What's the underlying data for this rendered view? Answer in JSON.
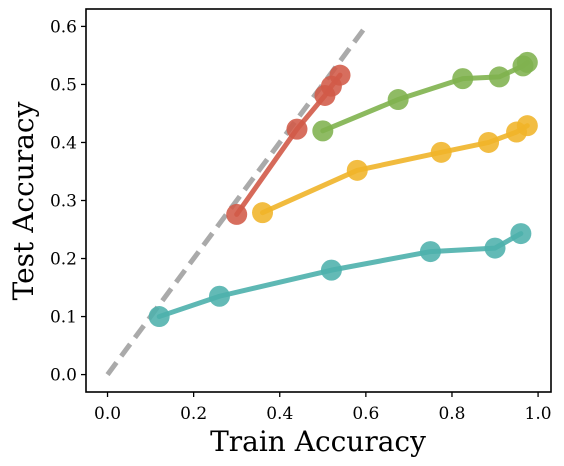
{
  "chart_data": {
    "type": "scatter",
    "xlabel": "Train Accuracy",
    "ylabel": "Test Accuracy",
    "xlim": [
      -0.05,
      1.03
    ],
    "ylim": [
      -0.03,
      0.63
    ],
    "xticks": [
      "0.0",
      "0.2",
      "0.4",
      "0.6",
      "0.8",
      "1.0"
    ],
    "yticks": [
      "0.0",
      "0.1",
      "0.2",
      "0.3",
      "0.4",
      "0.5",
      "0.6"
    ],
    "xtick_values": [
      0.0,
      0.2,
      0.4,
      0.6,
      0.8,
      1.0
    ],
    "ytick_values": [
      0.0,
      0.1,
      0.2,
      0.3,
      0.4,
      0.5,
      0.6
    ],
    "grid": false,
    "reference_line": {
      "x": [
        0.0,
        0.6
      ],
      "y": [
        0.0,
        0.6
      ],
      "color": "#aaaaaa",
      "style": "dashed"
    },
    "series": [
      {
        "color": "#4db0ac",
        "x": [
          0.12,
          0.26,
          0.52,
          0.75,
          0.9,
          0.96
        ],
        "y": [
          0.1,
          0.135,
          0.18,
          0.212,
          0.218,
          0.243
        ]
      },
      {
        "color": "#f0b429",
        "x": [
          0.36,
          0.58,
          0.775,
          0.885,
          0.95,
          0.975
        ],
        "y": [
          0.279,
          0.352,
          0.383,
          0.4,
          0.418,
          0.429
        ]
      },
      {
        "color": "#7fb24e",
        "x": [
          0.5,
          0.675,
          0.825,
          0.91,
          0.965,
          0.975
        ],
        "y": [
          0.42,
          0.474,
          0.51,
          0.513,
          0.532,
          0.538
        ]
      },
      {
        "color": "#d25a48",
        "x": [
          0.3,
          0.44,
          0.505,
          0.52,
          0.54
        ],
        "y": [
          0.276,
          0.423,
          0.481,
          0.497,
          0.516
        ]
      }
    ]
  }
}
